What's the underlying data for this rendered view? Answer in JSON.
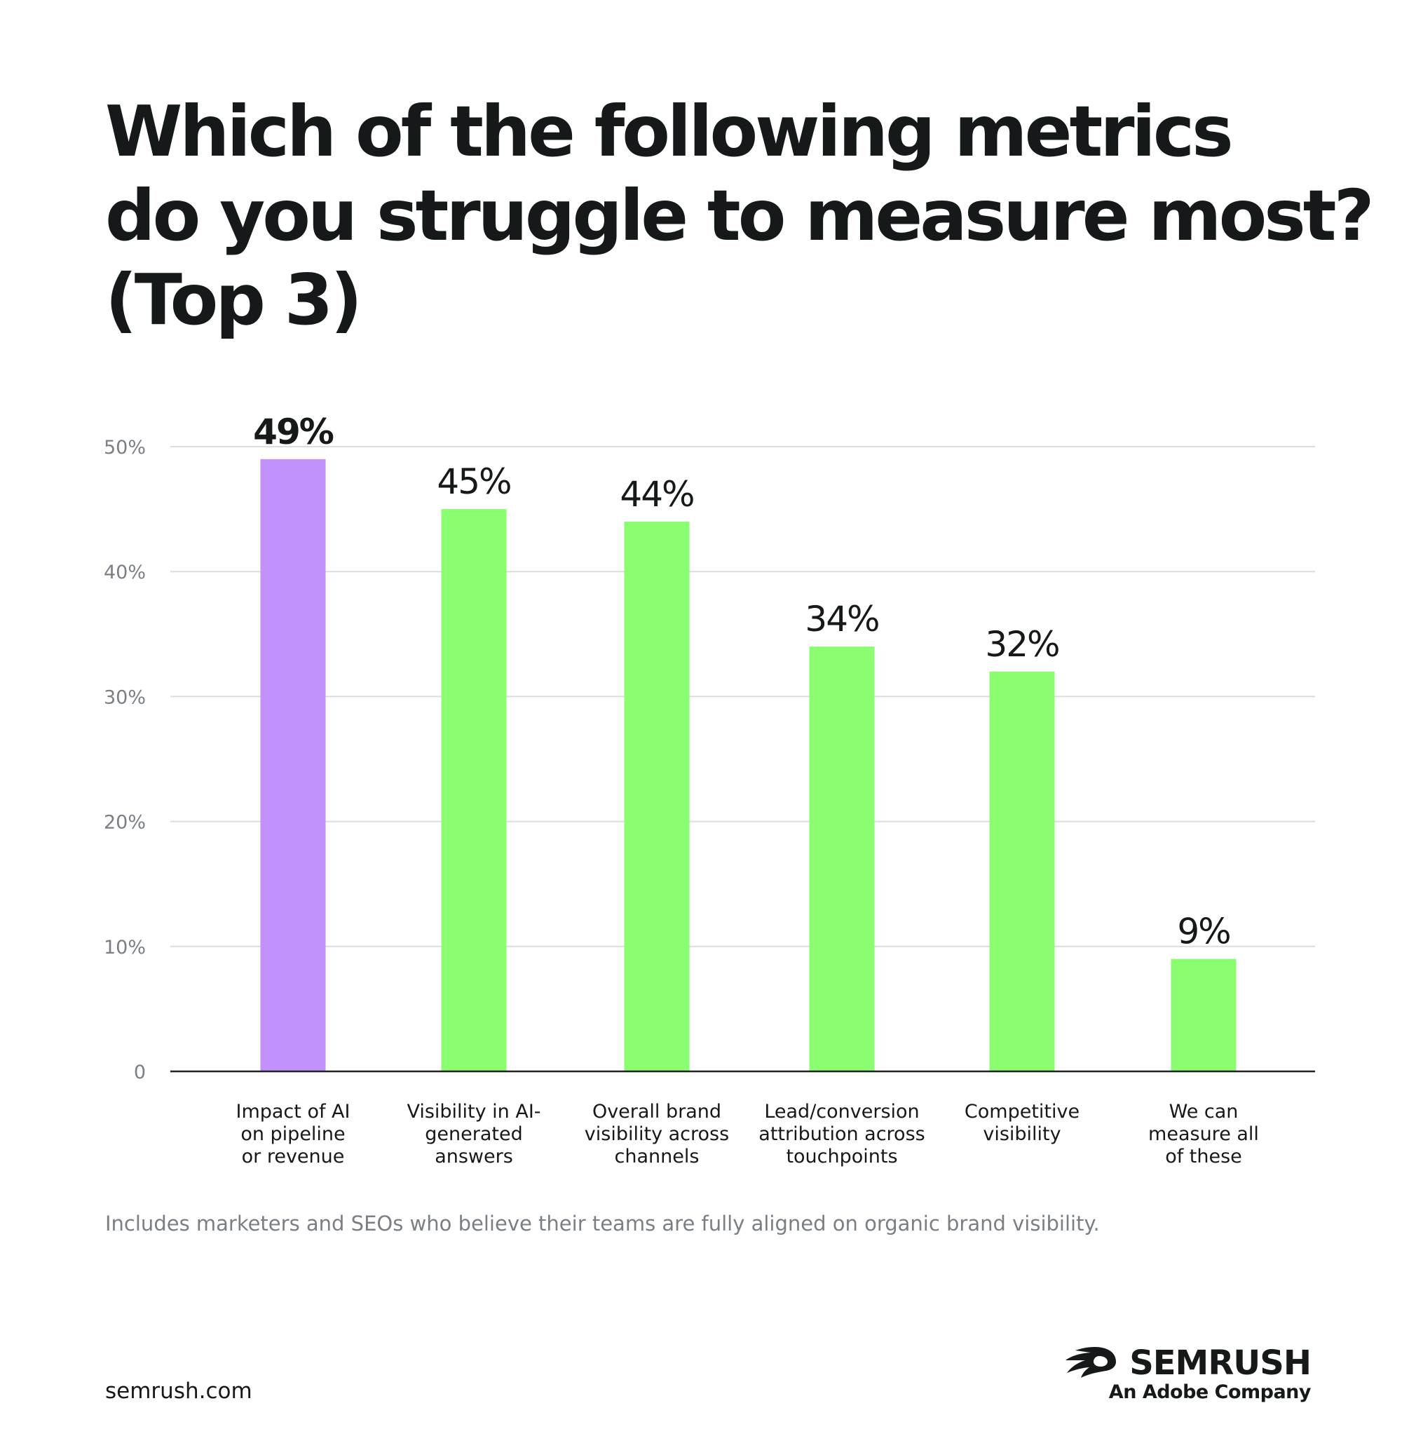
{
  "title": {
    "line1": "Which of the following metrics",
    "line2": "do you struggle to measure most?",
    "line3": "(Top 3)"
  },
  "footnote": "Includes marketers and SEOs who believe their teams are fully aligned on organic brand visibility.",
  "site": "semrush.com",
  "brand": {
    "logo_icon": "semrush-flame-icon",
    "wordmark": "SEMRUSH",
    "tagline": "An Adobe Company"
  },
  "colors": {
    "highlight_bar": "#c191fd",
    "bar": "#8afd71",
    "grid": "#dcdcdc",
    "axis": "#222222",
    "tick_label": "#7a7f86",
    "text": "#16191a"
  },
  "chart_data": {
    "type": "bar",
    "title": "Which of the following metrics do you struggle to measure most? (Top 3)",
    "categories": [
      [
        "Impact of AI",
        "on pipeline",
        "or revenue"
      ],
      [
        "Visibility in AI-",
        "generated",
        "answers"
      ],
      [
        "Overall brand",
        "visibility across",
        "channels"
      ],
      [
        "Lead/conversion",
        "attribution across",
        "touchpoints"
      ],
      [
        "Competitive",
        "visibility"
      ],
      [
        "We can",
        "measure all",
        "of these"
      ]
    ],
    "values": [
      49,
      45,
      44,
      34,
      32,
      9
    ],
    "value_labels": [
      "49%",
      "45%",
      "44%",
      "34%",
      "32%",
      "9%"
    ],
    "highlight_index": 0,
    "ylim": [
      0,
      50
    ],
    "yticks": [
      0,
      10,
      20,
      30,
      40,
      50
    ],
    "ytick_labels": [
      "0",
      "10%",
      "20%",
      "30%",
      "40%",
      "50%"
    ],
    "xlabel": "",
    "ylabel": "",
    "grid": true,
    "legend": "none"
  }
}
